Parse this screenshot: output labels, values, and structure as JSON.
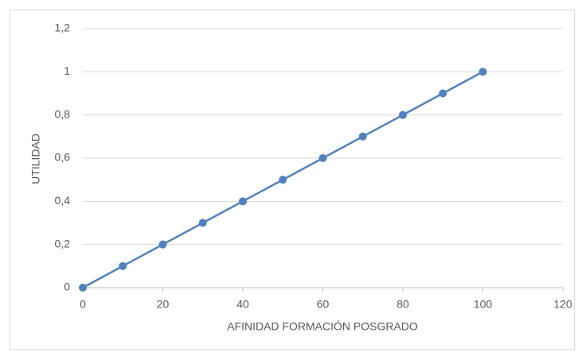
{
  "chart_data": {
    "type": "line",
    "x_label": "AFINIDAD FORMACIÓN POSGRADO",
    "y_label": "UTILIDAD",
    "x": [
      0,
      10,
      20,
      30,
      40,
      50,
      60,
      70,
      80,
      90,
      100
    ],
    "series": [
      {
        "color": "#4f81bd",
        "values": [
          0,
          0.1,
          0.2,
          0.3,
          0.4,
          0.5,
          0.6,
          0.7,
          0.8,
          0.9,
          1
        ]
      }
    ],
    "xlim": [
      0,
      120
    ],
    "xticks": [
      0,
      20,
      40,
      60,
      80,
      100,
      120
    ],
    "ylim": [
      0,
      1.2
    ],
    "yticks": [
      0,
      {
        "value": 0.2,
        "label": "0,2"
      },
      {
        "value": 0.4,
        "label": "0,4"
      },
      {
        "value": 0.6,
        "label": "0,6"
      },
      {
        "value": 0.8,
        "label": "0,8"
      },
      1,
      {
        "value": 1.2,
        "label": "1,2"
      }
    ],
    "grid": true
  }
}
